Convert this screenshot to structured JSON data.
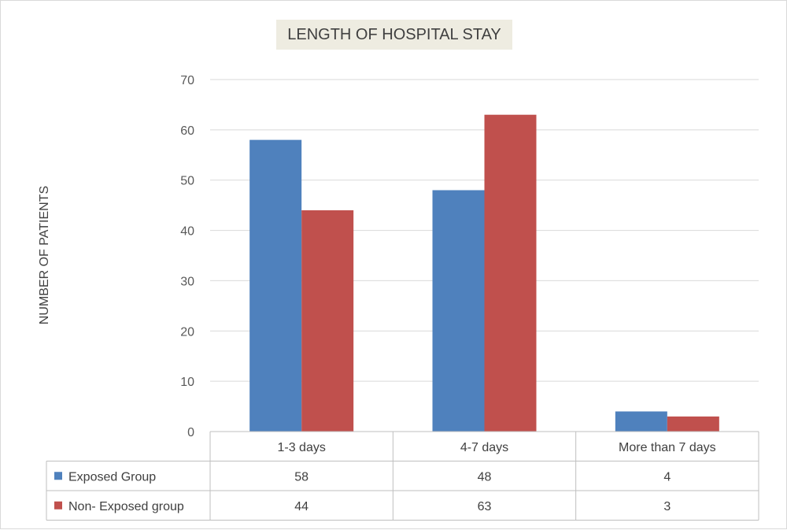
{
  "chart_data": {
    "type": "bar",
    "title": "LENGTH OF HOSPITAL STAY",
    "xlabel": "",
    "ylabel": "NUMBER OF PATIENTS",
    "categories": [
      "1-3 days",
      "4-7 days",
      "More than 7 days"
    ],
    "series": [
      {
        "name": "Exposed Group",
        "values": [
          58,
          48,
          4
        ],
        "color": "#4f81bd"
      },
      {
        "name": "Non- Exposed group",
        "values": [
          44,
          63,
          3
        ],
        "color": "#c0504d"
      }
    ],
    "ylim": [
      0,
      70
    ],
    "yticks": [
      0,
      10,
      20,
      30,
      40,
      50,
      60,
      70
    ],
    "grid": true,
    "legend": "data-table"
  }
}
